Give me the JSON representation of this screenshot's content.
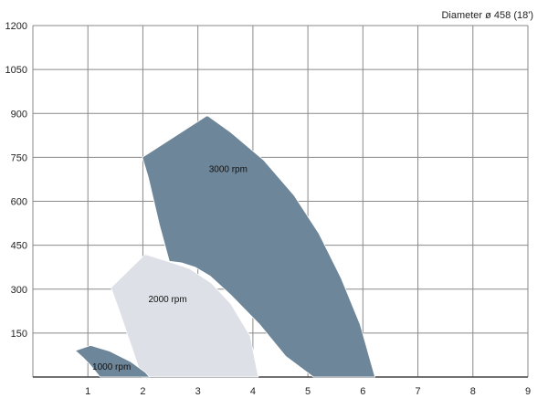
{
  "chart_data": {
    "type": "area",
    "title": "Diameter ø 458 (18')",
    "xlabel": "",
    "ylabel": "",
    "xlim": [
      0,
      9
    ],
    "ylim": [
      0,
      1200
    ],
    "x_ticks": [
      1,
      2,
      3,
      4,
      5,
      6,
      7,
      8,
      9
    ],
    "y_ticks": [
      150,
      300,
      450,
      600,
      750,
      900,
      1050,
      1200
    ],
    "grid": true,
    "series": [
      {
        "name": "3000 rpm",
        "color": "#6e8699",
        "label_at": [
          3.2,
          700
        ],
        "points": [
          [
            1.99,
            750
          ],
          [
            3.17,
            893
          ],
          [
            3.6,
            835
          ],
          [
            4.2,
            740
          ],
          [
            4.75,
            620
          ],
          [
            5.2,
            490
          ],
          [
            5.6,
            340
          ],
          [
            5.95,
            180
          ],
          [
            6.22,
            0
          ],
          [
            5.1,
            0
          ],
          [
            4.6,
            70
          ],
          [
            4.12,
            180
          ],
          [
            3.6,
            280
          ],
          [
            3.22,
            345
          ],
          [
            2.95,
            375
          ],
          [
            2.7,
            390
          ],
          [
            2.48,
            395
          ],
          [
            2.3,
            520
          ],
          [
            2.1,
            680
          ]
        ]
      },
      {
        "name": "2000 rpm",
        "color": "#dde0e6",
        "label_at": [
          2.1,
          255
        ],
        "points": [
          [
            1.42,
            305
          ],
          [
            2.04,
            419
          ],
          [
            2.5,
            392
          ],
          [
            2.85,
            370
          ],
          [
            3.25,
            320
          ],
          [
            3.6,
            250
          ],
          [
            3.95,
            140
          ],
          [
            4.1,
            0
          ],
          [
            1.98,
            0
          ],
          [
            1.8,
            100
          ],
          [
            1.6,
            210
          ]
        ]
      },
      {
        "name": "1000 rpm",
        "color": "#6e8699",
        "label_at": [
          1.08,
          25
        ],
        "points": [
          [
            0.77,
            90
          ],
          [
            1.05,
            108
          ],
          [
            1.4,
            88
          ],
          [
            1.78,
            52
          ],
          [
            2.05,
            15
          ],
          [
            2.12,
            0
          ],
          [
            1.22,
            0
          ],
          [
            1.05,
            40
          ],
          [
            0.92,
            65
          ]
        ]
      }
    ]
  }
}
